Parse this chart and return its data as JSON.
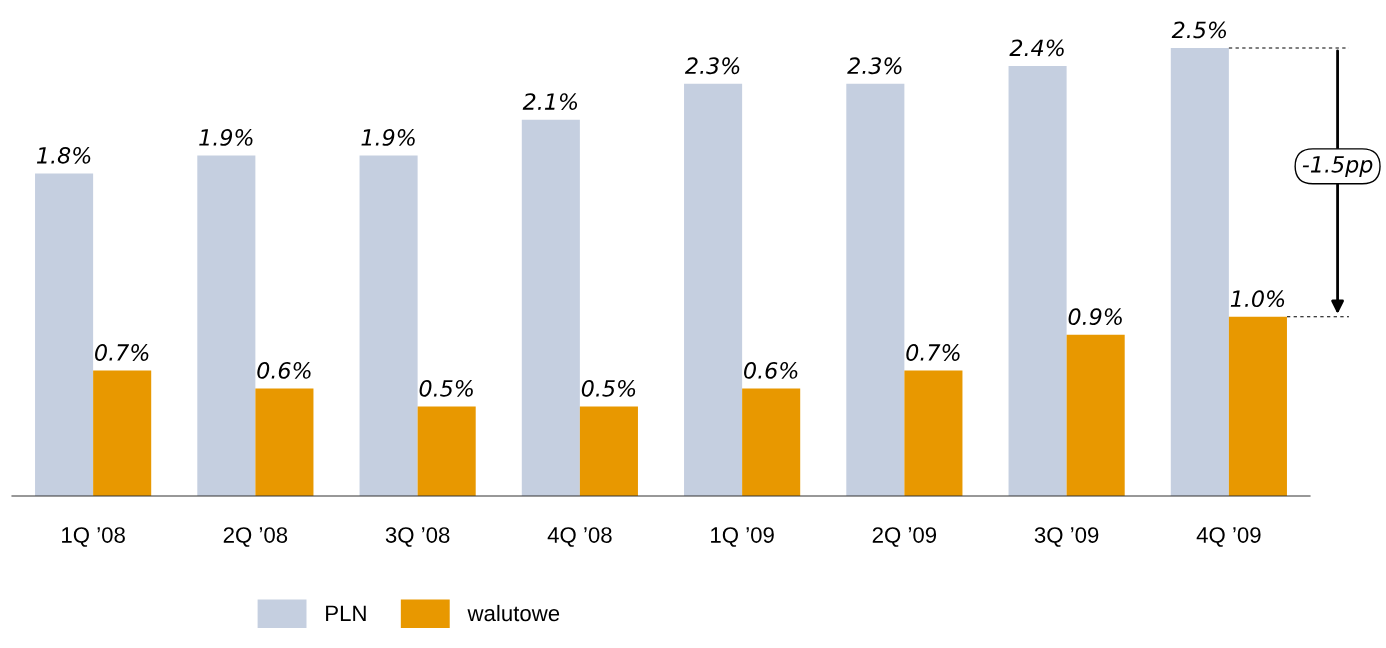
{
  "chart_data": {
    "type": "bar",
    "categories": [
      "1Q ’08",
      "2Q ’08",
      "3Q ’08",
      "4Q ’08",
      "1Q ’09",
      "2Q ’09",
      "3Q ’09",
      "4Q ’09"
    ],
    "series": [
      {
        "name": "PLN",
        "color": "#c5cfe0",
        "values": [
          1.8,
          1.9,
          1.9,
          2.1,
          2.3,
          2.3,
          2.4,
          2.5
        ],
        "value_labels": [
          "1.8%",
          "1.9%",
          "1.9%",
          "2.1%",
          "2.3%",
          "2.3%",
          "2.4%",
          "2.5%"
        ]
      },
      {
        "name": "walutowe",
        "color": "#e89800",
        "values": [
          0.7,
          0.6,
          0.5,
          0.5,
          0.6,
          0.7,
          0.9,
          1.0
        ],
        "value_labels": [
          "0.7%",
          "0.6%",
          "0.5%",
          "0.5%",
          "0.6%",
          "0.7%",
          "0.9%",
          "1.0%"
        ]
      }
    ],
    "annotations": [
      "-1.5pp"
    ],
    "legend": "bottom",
    "grid": false
  }
}
